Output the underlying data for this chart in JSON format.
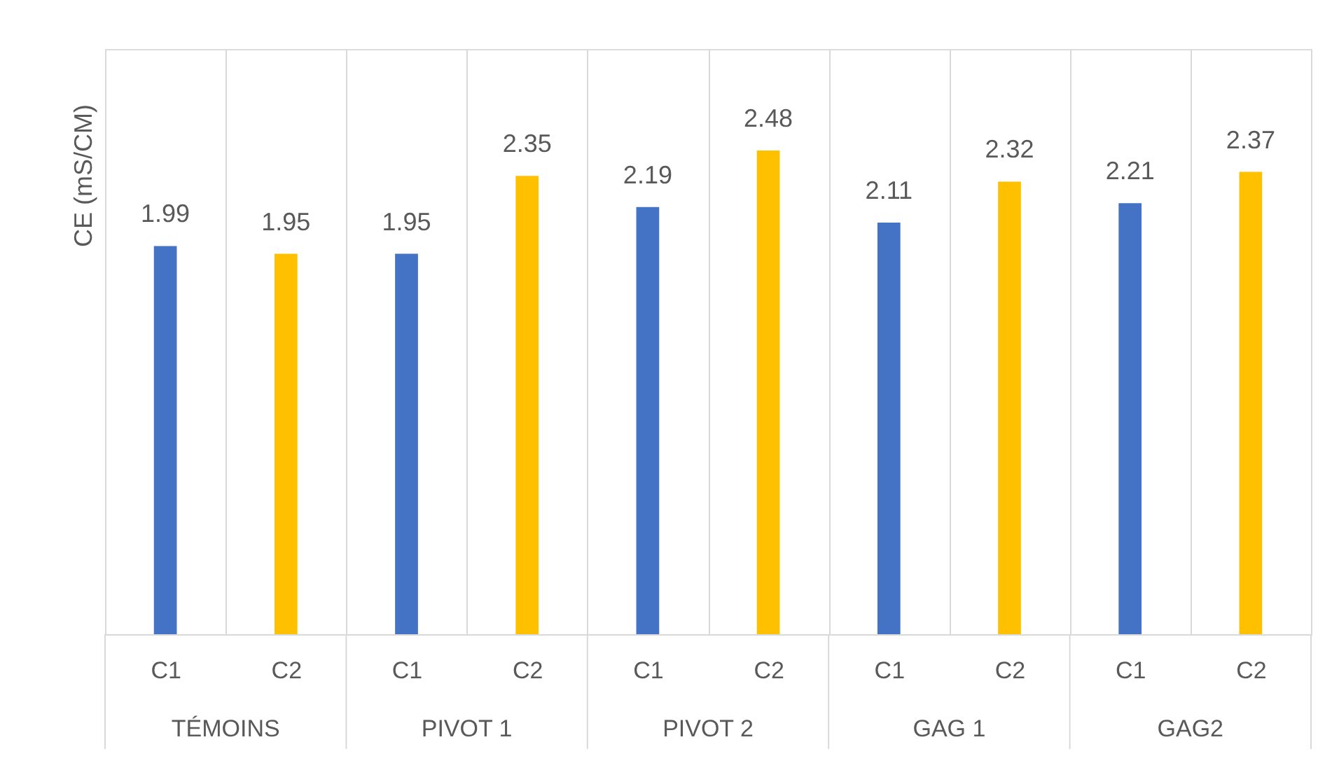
{
  "chart_data": {
    "type": "bar",
    "ylabel": "CE (mS/CM)",
    "categories": [
      "TÉMOINS",
      "PIVOT 1",
      "PIVOT 2",
      "GAG 1",
      "GAG2"
    ],
    "series": [
      {
        "name": "C1",
        "color": "#4472c4",
        "values": [
          1.99,
          1.95,
          2.19,
          2.11,
          2.21
        ]
      },
      {
        "name": "C2",
        "color": "#ffc000",
        "values": [
          1.95,
          2.35,
          2.48,
          2.32,
          2.37
        ]
      }
    ],
    "ylim": [
      0,
      3
    ],
    "data_labels": true,
    "grid": "x",
    "tick_labels": "x"
  }
}
